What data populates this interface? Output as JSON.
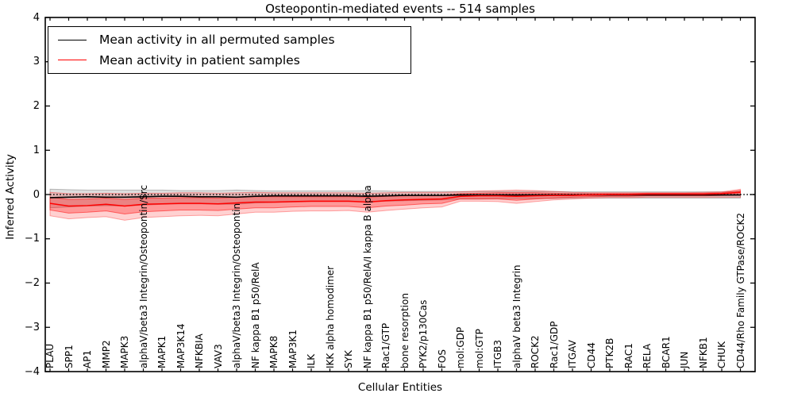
{
  "title": "Osteopontin-mediated events -- 514 samples",
  "legend": {
    "items": [
      {
        "label": "Mean activity in all permuted samples",
        "color": "#000000"
      },
      {
        "label": "Mean activity in patient samples",
        "color": "#ff0000"
      }
    ]
  },
  "chart_data": {
    "type": "line",
    "title": "Osteopontin-mediated events -- 514 samples",
    "xlabel": "Cellular Entities",
    "ylabel": "Inferred Activity",
    "ylim": [
      -4,
      4
    ],
    "yticks": [
      4,
      3,
      2,
      1,
      0,
      -1,
      -2,
      -3,
      -4
    ],
    "grid": false,
    "legend_position": "upper left",
    "zero_reference_line": "dotted",
    "x_tick_rotation": "vertical",
    "categories": [
      "PLAU",
      "SPP1",
      "AP1",
      "MMP2",
      "MAPK3",
      "alphaV/beta3 Integrin/Osteopontin/Src",
      "MAPK1",
      "MAP3K14",
      "NFKBIA",
      "VAV3",
      "alphaV/beta3 Integrin/Osteopontin",
      "NF kappa B1 p50/RelA",
      "MAPK8",
      "MAP3K1",
      "ILK",
      "IKK alpha homodimer",
      "SYK",
      "NF kappa B1 p50/RelA/I kappa B alpha",
      "Rac1/GTP",
      "bone resorption",
      "PYK2/p130Cas",
      "FOS",
      "mol:GDP",
      "mol:GTP",
      "ITGB3",
      "alphaV beta3 Integrin",
      "ROCK2",
      "Rac1/GDP",
      "ITGAV",
      "CD44",
      "PTK2B",
      "RAC1",
      "RELA",
      "BCAR1",
      "JUN",
      "NFKB1",
      "CHUK",
      "CD44/Rho Family GTPase/ROCK2"
    ],
    "series": [
      {
        "name": "Mean activity in all permuted samples",
        "color": "#000000",
        "style": "solid",
        "values": [
          -0.07,
          -0.06,
          -0.05,
          -0.06,
          -0.06,
          -0.05,
          -0.04,
          -0.04,
          -0.05,
          -0.05,
          -0.06,
          -0.04,
          -0.03,
          -0.03,
          -0.03,
          -0.03,
          -0.03,
          -0.04,
          -0.03,
          -0.02,
          -0.02,
          -0.02,
          -0.01,
          -0.01,
          -0.01,
          -0.01,
          -0.01,
          -0.01,
          -0.01,
          -0.01,
          -0.01,
          -0.01,
          -0.01,
          -0.01,
          -0.01,
          -0.01,
          -0.01,
          -0.01
        ]
      },
      {
        "name": "Mean activity in patient samples",
        "color": "#ff0000",
        "style": "solid",
        "values": [
          -0.2,
          -0.26,
          -0.25,
          -0.22,
          -0.26,
          -0.22,
          -0.21,
          -0.2,
          -0.2,
          -0.21,
          -0.19,
          -0.17,
          -0.17,
          -0.16,
          -0.15,
          -0.15,
          -0.15,
          -0.17,
          -0.14,
          -0.12,
          -0.11,
          -0.1,
          -0.04,
          -0.03,
          -0.03,
          -0.04,
          -0.03,
          -0.02,
          -0.02,
          -0.01,
          0.0,
          0.0,
          0.01,
          0.01,
          0.01,
          0.01,
          0.02,
          0.05
        ]
      }
    ],
    "bands": [
      {
        "name": "permuted-sample-range",
        "color": "#000000",
        "fill_opacity": 0.13,
        "upper": [
          0.12,
          0.11,
          0.1,
          0.1,
          0.1,
          0.1,
          0.1,
          0.09,
          0.09,
          0.09,
          0.1,
          0.09,
          0.08,
          0.08,
          0.08,
          0.08,
          0.08,
          0.09,
          0.08,
          0.07,
          0.07,
          0.07,
          0.07,
          0.07,
          0.07,
          0.07,
          0.07,
          0.07,
          0.06,
          0.06,
          0.06,
          0.06,
          0.06,
          0.06,
          0.06,
          0.06,
          0.06,
          0.07
        ],
        "lower": [
          -0.3,
          -0.28,
          -0.26,
          -0.25,
          -0.26,
          -0.24,
          -0.22,
          -0.21,
          -0.21,
          -0.22,
          -0.22,
          -0.19,
          -0.18,
          -0.17,
          -0.16,
          -0.16,
          -0.16,
          -0.17,
          -0.15,
          -0.14,
          -0.13,
          -0.12,
          -0.1,
          -0.1,
          -0.09,
          -0.09,
          -0.09,
          -0.09,
          -0.08,
          -0.08,
          -0.08,
          -0.08,
          -0.08,
          -0.08,
          -0.08,
          -0.08,
          -0.08,
          -0.08
        ]
      },
      {
        "name": "patient-sample-range-outer",
        "color": "#ff0000",
        "fill_opacity": 0.18,
        "upper": [
          0.05,
          0.02,
          0.02,
          0.03,
          0.02,
          0.03,
          0.03,
          0.04,
          0.04,
          0.03,
          0.04,
          0.05,
          0.04,
          0.04,
          0.04,
          0.04,
          0.04,
          0.03,
          0.04,
          0.05,
          0.05,
          0.05,
          0.06,
          0.08,
          0.09,
          0.1,
          0.09,
          0.07,
          0.05,
          0.04,
          0.04,
          0.04,
          0.04,
          0.04,
          0.04,
          0.05,
          0.06,
          0.12
        ],
        "lower": [
          -0.48,
          -0.55,
          -0.52,
          -0.5,
          -0.58,
          -0.52,
          -0.5,
          -0.48,
          -0.47,
          -0.48,
          -0.44,
          -0.4,
          -0.4,
          -0.38,
          -0.37,
          -0.37,
          -0.36,
          -0.4,
          -0.36,
          -0.33,
          -0.3,
          -0.28,
          -0.15,
          -0.15,
          -0.16,
          -0.2,
          -0.16,
          -0.12,
          -0.1,
          -0.08,
          -0.07,
          -0.07,
          -0.06,
          -0.06,
          -0.06,
          -0.06,
          -0.06,
          -0.06
        ]
      },
      {
        "name": "patient-sample-range-inner",
        "color": "#ff0000",
        "fill_opacity": 0.28,
        "upper": [
          -0.06,
          -0.11,
          -0.1,
          -0.08,
          -0.11,
          -0.08,
          -0.08,
          -0.07,
          -0.07,
          -0.08,
          -0.06,
          -0.05,
          -0.05,
          -0.05,
          -0.05,
          -0.05,
          -0.05,
          -0.06,
          -0.04,
          -0.03,
          -0.02,
          -0.02,
          0.02,
          0.03,
          0.04,
          0.04,
          0.04,
          0.03,
          0.02,
          0.02,
          0.02,
          0.02,
          0.03,
          0.03,
          0.03,
          0.03,
          0.04,
          0.09
        ],
        "lower": [
          -0.35,
          -0.42,
          -0.4,
          -0.37,
          -0.44,
          -0.39,
          -0.37,
          -0.35,
          -0.35,
          -0.36,
          -0.33,
          -0.3,
          -0.3,
          -0.28,
          -0.27,
          -0.27,
          -0.27,
          -0.3,
          -0.26,
          -0.24,
          -0.21,
          -0.2,
          -0.1,
          -0.1,
          -0.1,
          -0.13,
          -0.1,
          -0.08,
          -0.06,
          -0.05,
          -0.04,
          -0.04,
          -0.03,
          -0.03,
          -0.03,
          -0.03,
          -0.02,
          -0.01
        ]
      }
    ]
  }
}
